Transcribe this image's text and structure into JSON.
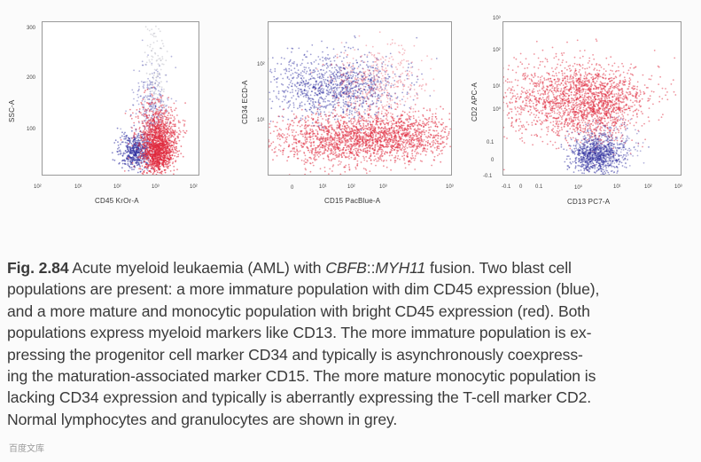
{
  "panels": [
    {
      "id": "cd45-ssc",
      "xlabel": "CD45 KrOr-A",
      "ylabel": "SSC-A",
      "yticks": [
        "300",
        "200",
        "100"
      ],
      "xticks": [
        "10²",
        "10¹",
        "10²",
        "10³",
        "10²"
      ]
    },
    {
      "id": "cd15-cd34",
      "xlabel": "CD15 PacBlue-A",
      "ylabel": "CD34 ECD-A",
      "yticks": [
        "10²",
        "10¹"
      ],
      "xticks": [
        "0",
        "10¹",
        "10²",
        "10³",
        "10³"
      ]
    },
    {
      "id": "cd13-cd2",
      "xlabel": "CD13 PC7-A",
      "ylabel": "CD2 APC-A",
      "yticks": [
        "10³",
        "10²",
        "10¹",
        "10⁰",
        "0.1",
        "0",
        "-0.1"
      ],
      "xticks": [
        "-0.1",
        "0",
        "0.1",
        "10⁰",
        "10¹",
        "10²",
        "10³"
      ]
    }
  ],
  "caption": {
    "label": "Fig. 2.84",
    "segment_1": " Acute myeloid leukaemia (AML) with ",
    "gene_a": "CBFB",
    "separator": "::",
    "gene_b": "MYH11",
    "segment_2": " fusion. Two blast cell",
    "line_2": "populations are present: a more immature population with dim CD45 expression (blue),",
    "line_3": "and a more mature and monocytic population with bright CD45 expression (red). Both",
    "line_4": "populations express myeloid markers like CD13. The more immature population is ex-",
    "line_5": "pressing the progenitor cell marker CD34 and typically is asynchronously coexpress-",
    "line_6": "ing the maturation-associated marker CD15. The more mature monocytic population is",
    "line_7": "lacking CD34 expression and typically is aberrantly expressing the T-cell marker CD2.",
    "line_8": "Normal lymphocytes and granulocytes are shown in grey."
  },
  "watermark": "百度文库",
  "colors": {
    "blue": "#2b2b9e",
    "red": "#e0283c",
    "grey": "#9a9aa8"
  }
}
